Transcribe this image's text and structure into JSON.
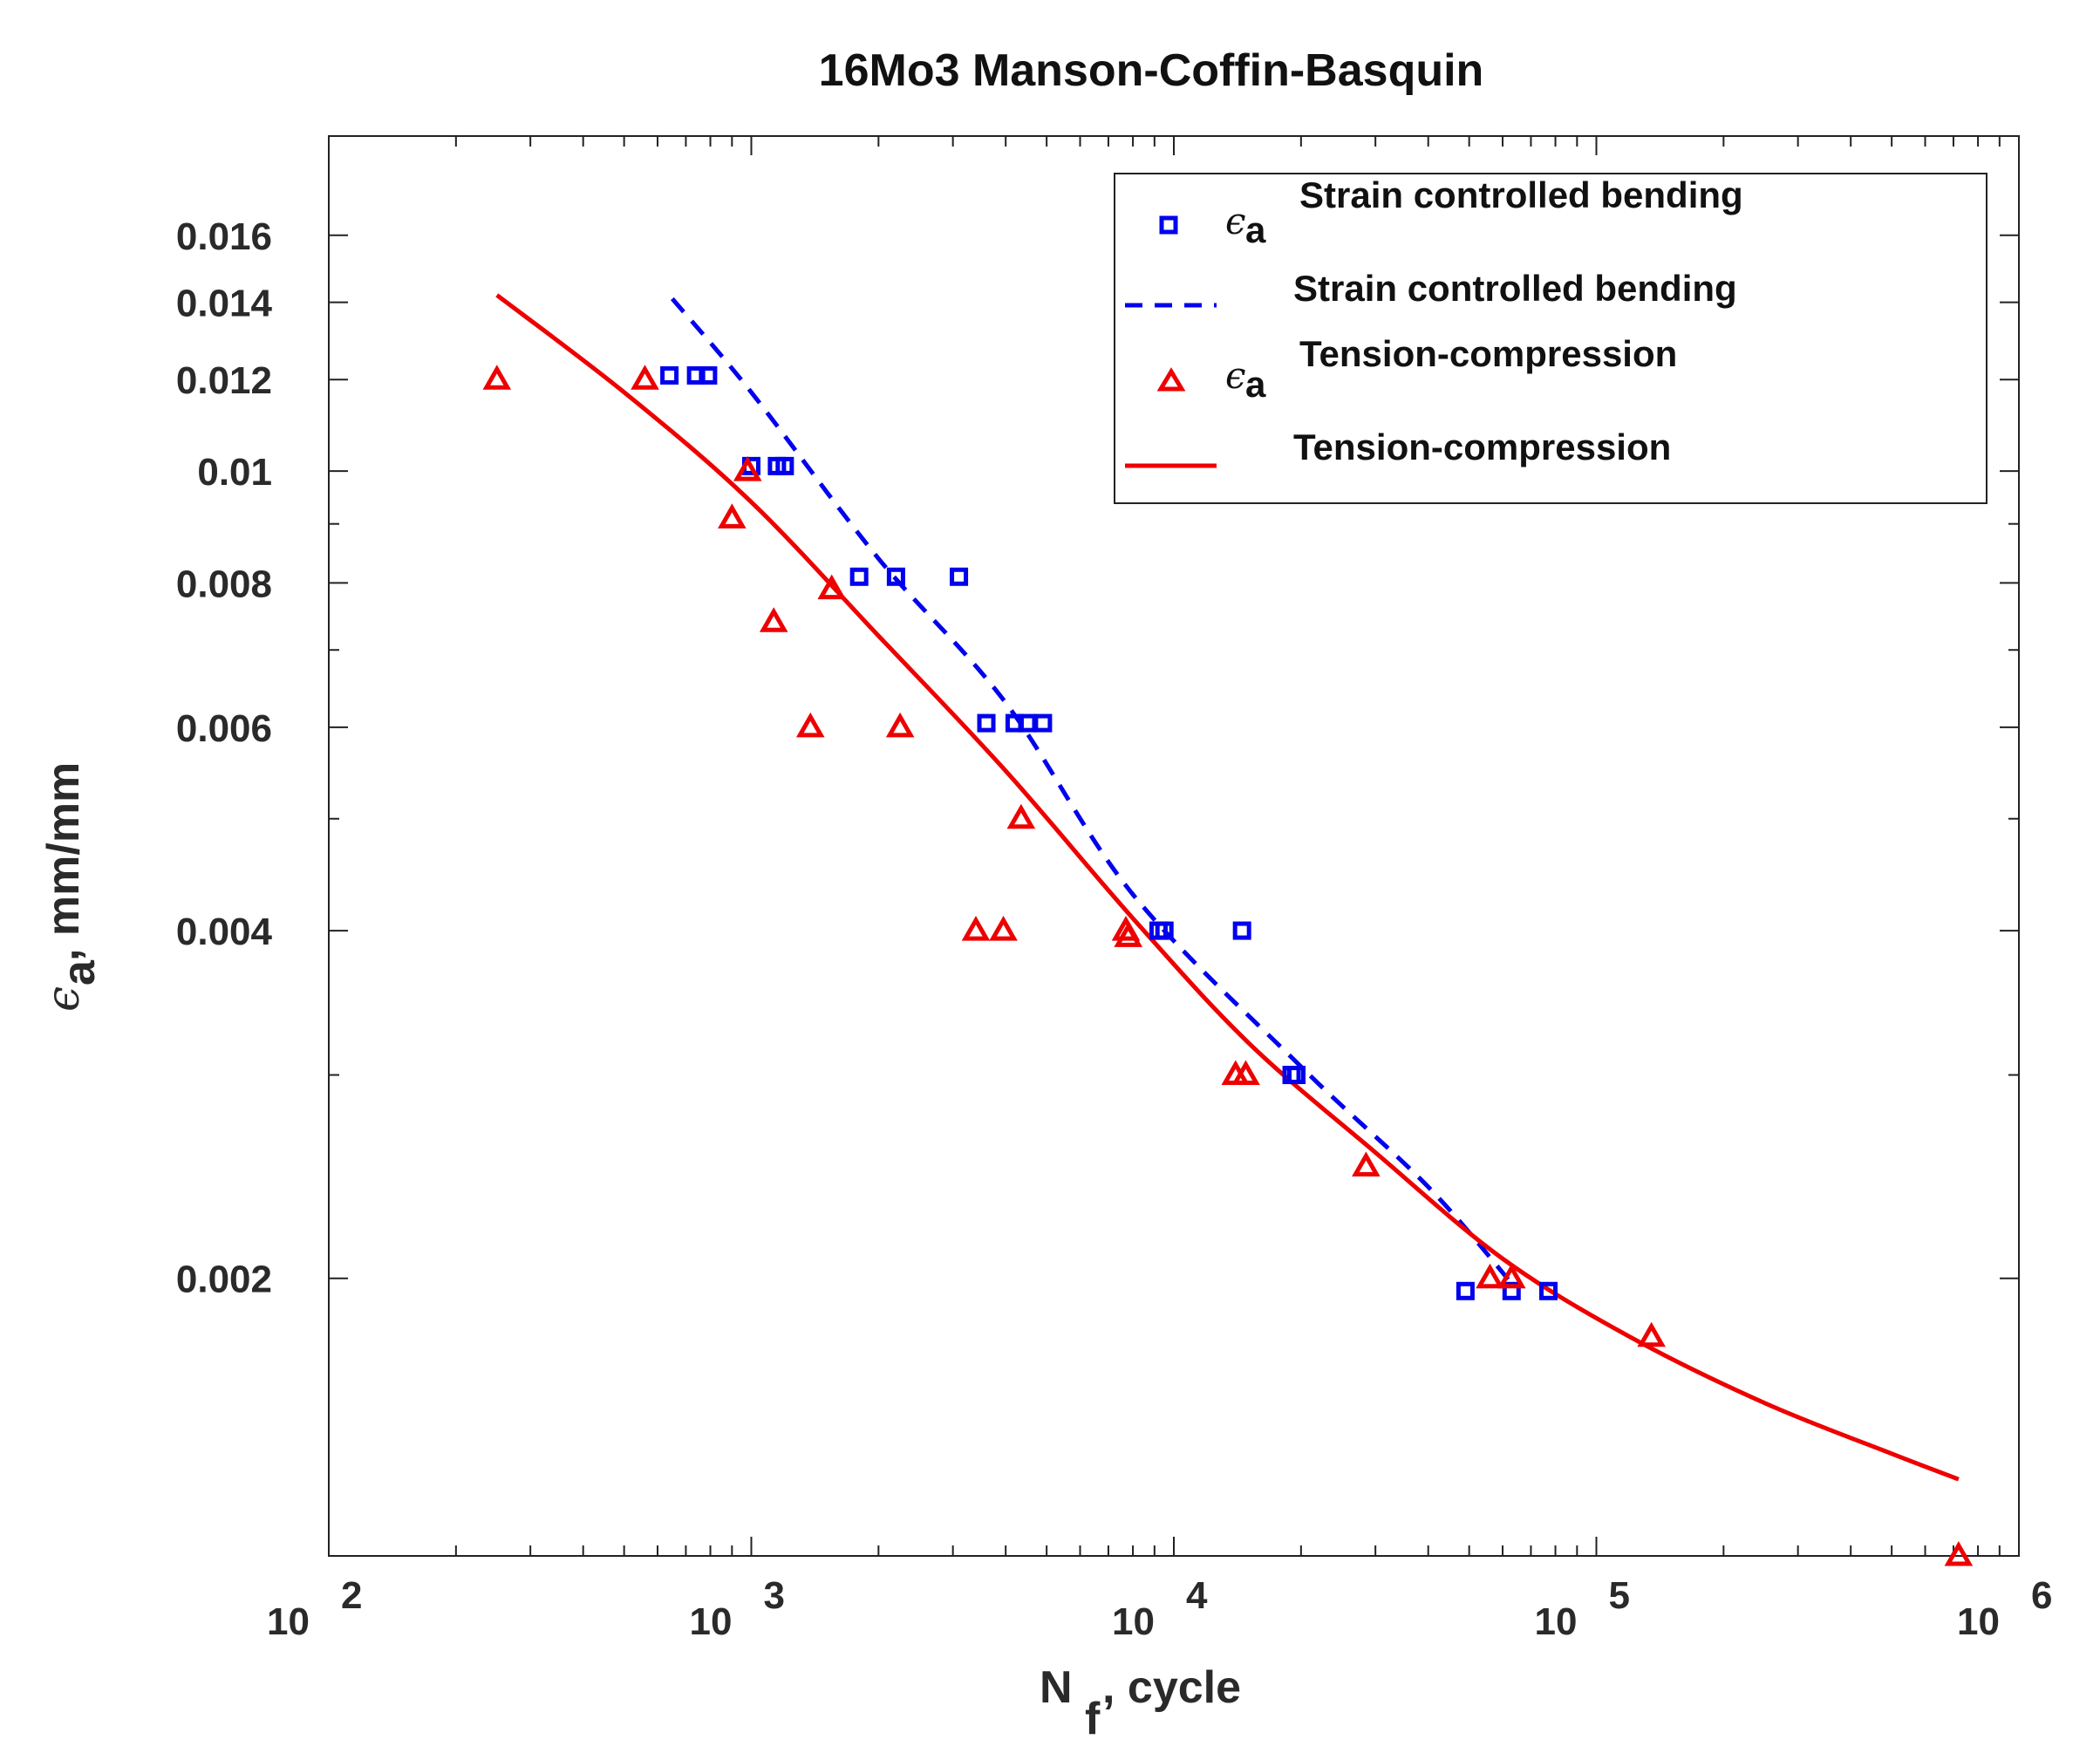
{
  "chart_data": {
    "type": "scatter",
    "title": "16Mo3 Manson-Coffin-Basquin",
    "xlabel": {
      "main": "N",
      "sub": "f",
      "rest": ", cycle"
    },
    "ylabel": {
      "symbol": "ϵ",
      "sub": "a",
      "rest": ", mm/mm"
    },
    "xscale": "log",
    "yscale": "log",
    "xlim": [
      100,
      1000000
    ],
    "ylim": [
      0.00115,
      0.0195
    ],
    "x_ticks": [
      {
        "base": "10",
        "exp": "2",
        "value": 100
      },
      {
        "base": "10",
        "exp": "3",
        "value": 1000
      },
      {
        "base": "10",
        "exp": "4",
        "value": 10000
      },
      {
        "base": "10",
        "exp": "5",
        "value": 100000
      },
      {
        "base": "10",
        "exp": "6",
        "value": 1000000
      }
    ],
    "y_ticks": [
      {
        "label": "0.016",
        "value": 0.016
      },
      {
        "label": "0.014",
        "value": 0.014
      },
      {
        "label": "0.012",
        "value": 0.012
      },
      {
        "label": "0.01",
        "value": 0.01
      },
      {
        "label": "0.008",
        "value": 0.008
      },
      {
        "label": "0.006",
        "value": 0.006
      },
      {
        "label": "0.004",
        "value": 0.004
      },
      {
        "label": "0.002",
        "value": 0.002
      }
    ],
    "y_minor_ticks": [
      0.003,
      0.005,
      0.007,
      0.009
    ],
    "legend_position": "top-right",
    "legend": [
      {
        "symbol": "ϵ",
        "sub": "a",
        "label": "Strain controlled bending"
      },
      {
        "label": "Strain controlled bending"
      },
      {
        "symbol": "ϵ",
        "sub": "a",
        "label": "Tension-compression"
      },
      {
        "label": "Tension-compression"
      }
    ],
    "series": [
      {
        "name": "Strain controlled bending (data)",
        "kind": "markers",
        "marker": "square",
        "color": "#0000ee",
        "points": [
          [
            640,
            0.0121
          ],
          [
            740,
            0.0121
          ],
          [
            790,
            0.0121
          ],
          [
            1000,
            0.0101
          ],
          [
            1150,
            0.0101
          ],
          [
            1200,
            0.0101
          ],
          [
            1800,
            0.0081
          ],
          [
            2200,
            0.0081
          ],
          [
            3100,
            0.0081
          ],
          [
            3600,
            0.00605
          ],
          [
            4200,
            0.00605
          ],
          [
            4500,
            0.00605
          ],
          [
            4900,
            0.00605
          ],
          [
            9200,
            0.004
          ],
          [
            9500,
            0.004
          ],
          [
            14500,
            0.004
          ],
          [
            19000,
            0.003
          ],
          [
            19500,
            0.003
          ],
          [
            49000,
            0.00195
          ],
          [
            63000,
            0.00195
          ],
          [
            77000,
            0.00195
          ]
        ]
      },
      {
        "name": "Strain controlled bending (fit)",
        "kind": "line",
        "dash": true,
        "color": "#0000ee",
        "points": [
          [
            650,
            0.0141
          ],
          [
            1000,
            0.0117
          ],
          [
            2000,
            0.0084
          ],
          [
            4000,
            0.0063
          ],
          [
            8000,
            0.0043
          ],
          [
            20000,
            0.00305
          ],
          [
            40000,
            0.0024
          ],
          [
            63000,
            0.00198
          ]
        ]
      },
      {
        "name": "Tension-compression (data)",
        "kind": "markers",
        "marker": "triangle",
        "color": "#ee0000",
        "points": [
          [
            250,
            0.012
          ],
          [
            560,
            0.012
          ],
          [
            900,
            0.0091
          ],
          [
            980,
            0.01
          ],
          [
            1130,
            0.0074
          ],
          [
            1380,
            0.006
          ],
          [
            1550,
            0.0079
          ],
          [
            2250,
            0.006
          ],
          [
            3400,
            0.004
          ],
          [
            3950,
            0.004
          ],
          [
            4350,
            0.005
          ],
          [
            7700,
            0.004
          ],
          [
            7800,
            0.00395
          ],
          [
            14000,
            0.003
          ],
          [
            14800,
            0.003
          ],
          [
            28500,
            0.0025
          ],
          [
            56000,
            0.002
          ],
          [
            63000,
            0.002
          ],
          [
            135000,
            0.00178
          ],
          [
            720000,
            0.00115
          ]
        ]
      },
      {
        "name": "Tension-compression (fit)",
        "kind": "line",
        "dash": false,
        "color": "#ee0000",
        "points": [
          [
            250,
            0.0142
          ],
          [
            500,
            0.0117
          ],
          [
            1000,
            0.0094
          ],
          [
            2000,
            0.0072
          ],
          [
            4000,
            0.0055
          ],
          [
            8000,
            0.0041
          ],
          [
            15000,
            0.0032
          ],
          [
            30000,
            0.00257
          ],
          [
            60000,
            0.00208
          ],
          [
            120000,
            0.00178
          ],
          [
            250000,
            0.00156
          ],
          [
            500000,
            0.00141
          ],
          [
            720000,
            0.00134
          ]
        ]
      }
    ]
  }
}
